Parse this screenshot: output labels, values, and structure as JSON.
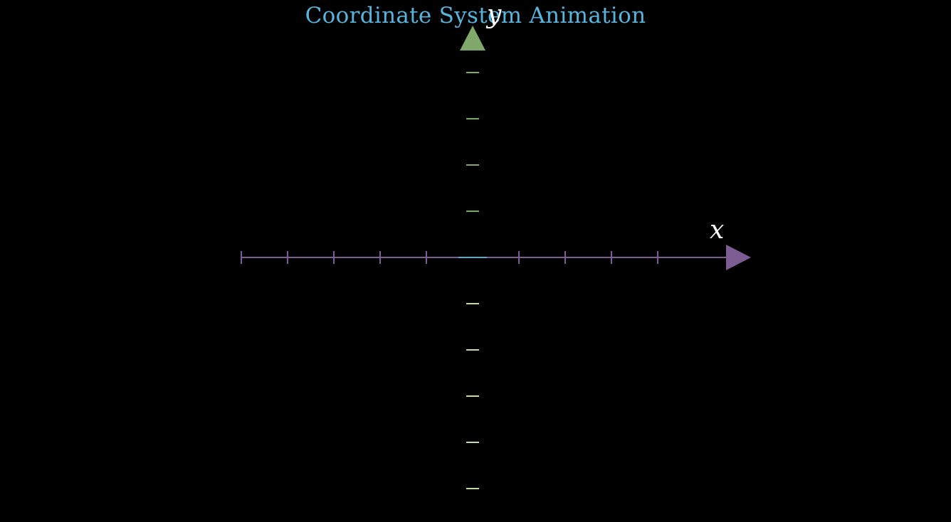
{
  "title": "Coordinate System Animation",
  "colors": {
    "background": "#000000",
    "title": "#58B4DC",
    "x_axis": "#7E5D94",
    "y_axis_top": "#7FA86A",
    "y_axis_bottom": "#C6DBA0",
    "origin_marker": "#4FB0C9",
    "axis_label": "#FFFFFF"
  },
  "axes": {
    "x": {
      "label": "x",
      "range": [
        -5,
        5
      ],
      "tick_step": 1,
      "arrow": "positive-end"
    },
    "y": {
      "label": "y",
      "range": [
        -5,
        5
      ],
      "tick_step": 1,
      "arrow": "positive-end"
    }
  }
}
